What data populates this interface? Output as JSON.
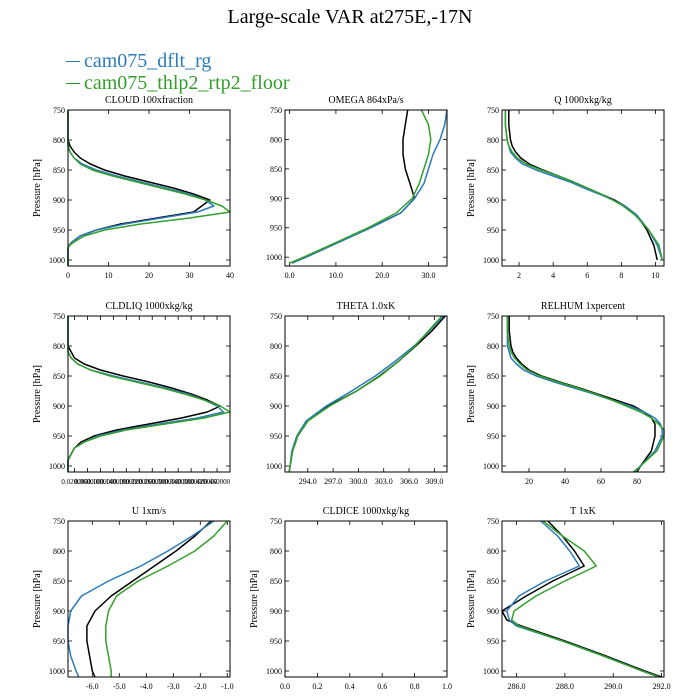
{
  "title": "Large-scale VAR at275E,-17N",
  "legend": [
    {
      "name": "cam075_dflt_rg",
      "color": "#2b7bbb"
    },
    {
      "name": "cam075_thlp2_rtp2_floor",
      "color": "#33a02c"
    }
  ],
  "colors": {
    "reference": "#000000"
  },
  "chart_data": [
    {
      "type": "line",
      "title": "CLOUD  100xfraction",
      "ylabel": "Pressure [hPa]",
      "ylim": [
        1010,
        750
      ],
      "yticks": [
        750,
        800,
        850,
        900,
        950,
        1000
      ],
      "xlim": [
        0,
        40
      ],
      "xticks": [
        0,
        10,
        20,
        30,
        40
      ],
      "xticklabels": [
        "0",
        "10",
        "20",
        "30",
        "40"
      ],
      "y": [
        750,
        775,
        800,
        810,
        820,
        830,
        840,
        850,
        860,
        870,
        880,
        890,
        900,
        910,
        920,
        930,
        940,
        950,
        960,
        970,
        975,
        980,
        990,
        1000,
        1010
      ],
      "series": [
        {
          "name": "",
          "color": "#000000",
          "x": [
            0,
            0,
            0,
            0.5,
            1.5,
            3,
            5.5,
            9,
            14,
            20,
            26,
            31,
            35,
            33,
            31,
            22,
            13,
            7,
            3,
            1,
            0.3,
            0,
            0,
            0,
            0
          ]
        },
        {
          "name": "cam075_dflt_rg",
          "color": "#2b7bbb",
          "x": [
            0,
            0,
            0,
            0,
            0.5,
            1.5,
            3.5,
            7,
            12,
            18,
            24,
            30,
            34,
            36,
            32,
            23,
            14,
            7,
            3,
            1,
            0.3,
            0,
            0,
            0,
            0
          ]
        },
        {
          "name": "cam075_thlp2_rtp2_floor",
          "color": "#33a02c",
          "x": [
            0,
            0,
            0,
            0,
            0.5,
            1.5,
            3,
            6,
            11,
            17,
            23,
            29,
            34,
            38,
            40,
            30,
            18,
            9,
            4,
            1.5,
            0.5,
            0,
            0,
            0,
            0
          ]
        }
      ]
    },
    {
      "type": "line",
      "title": "OMEGA  864xPa/s",
      "ylabel": "",
      "ylim": [
        1015,
        750
      ],
      "yticks": [
        750,
        800,
        850,
        900,
        950,
        1000
      ],
      "xlim": [
        -1,
        34
      ],
      "xticks": [
        0,
        10,
        20,
        30
      ],
      "xticklabels": [
        "0.0",
        "10.0",
        "20.0",
        "30.0"
      ],
      "y": [
        750,
        775,
        800,
        825,
        850,
        875,
        900,
        925,
        950,
        975,
        1000,
        1010
      ],
      "series": [
        {
          "name": "",
          "color": "#000000",
          "x": [
            25.5,
            25,
            24.5,
            24.5,
            25,
            26,
            27,
            24,
            17.5,
            10.5,
            3.5,
            0.5
          ]
        },
        {
          "name": "cam075_dflt_rg",
          "color": "#2b7bbb",
          "x": [
            34,
            33.5,
            32.5,
            31,
            30,
            29,
            27,
            24,
            17.5,
            10.5,
            3.5,
            0.5
          ]
        },
        {
          "name": "cam075_thlp2_rtp2_floor",
          "color": "#33a02c",
          "x": [
            28.5,
            30,
            30.5,
            30,
            29,
            28,
            26.5,
            23,
            17,
            10,
            3,
            0
          ]
        }
      ]
    },
    {
      "type": "line",
      "title": "Q  1000xkg/kg",
      "ylabel": "Pressure [hPa]",
      "ylim": [
        1010,
        750
      ],
      "yticks": [
        750,
        800,
        850,
        900,
        950,
        1000
      ],
      "xlim": [
        1,
        10.5
      ],
      "xticks": [
        2,
        4,
        6,
        8,
        10
      ],
      "xticklabels": [
        "2",
        "4",
        "6",
        "8",
        "10"
      ],
      "y": [
        750,
        775,
        800,
        810,
        820,
        830,
        840,
        850,
        860,
        870,
        880,
        890,
        900,
        910,
        925,
        950,
        975,
        1000
      ],
      "series": [
        {
          "name": "",
          "color": "#000000",
          "x": [
            1.4,
            1.4,
            1.5,
            1.6,
            1.8,
            2.1,
            2.6,
            3.4,
            4.3,
            5.2,
            6.0,
            6.8,
            7.6,
            8.2,
            8.9,
            9.5,
            9.9,
            10.1
          ]
        },
        {
          "name": "cam075_dflt_rg",
          "color": "#2b7bbb",
          "x": [
            1.2,
            1.2,
            1.3,
            1.4,
            1.5,
            1.8,
            2.2,
            3.0,
            4.0,
            5.0,
            5.8,
            6.7,
            7.5,
            8.2,
            8.9,
            9.6,
            10.1,
            10.4
          ]
        },
        {
          "name": "cam075_thlp2_rtp2_floor",
          "color": "#33a02c",
          "x": [
            1.2,
            1.2,
            1.3,
            1.4,
            1.6,
            1.9,
            2.4,
            3.3,
            4.3,
            5.2,
            6.0,
            6.8,
            7.5,
            8.1,
            8.8,
            9.6,
            10.2,
            10.4
          ]
        }
      ]
    },
    {
      "type": "line",
      "title": "CLDLIQ  1000xkg/kg",
      "ylabel": "Pressure [hPa]",
      "ylim": [
        1010,
        750
      ],
      "yticks": [
        750,
        800,
        850,
        900,
        950,
        1000
      ],
      "xlim": [
        0,
        0.5
      ],
      "xticks": [
        0.02,
        0.06,
        0.1,
        0.14,
        0.18,
        0.22,
        0.26,
        0.3,
        0.34,
        0.38,
        0.42,
        0.46
      ],
      "xticklabels": [
        "0.020000",
        "0.060000",
        "0.100000",
        "0.140000",
        "0.180000",
        "0.220000",
        "0.260000",
        "0.300000",
        "0.340000",
        "0.380000",
        "0.420000",
        "0.460000"
      ],
      "y": [
        750,
        775,
        800,
        810,
        820,
        830,
        840,
        850,
        860,
        870,
        880,
        890,
        900,
        910,
        920,
        930,
        940,
        950,
        960,
        970,
        980,
        990,
        1000,
        1010
      ],
      "series": [
        {
          "name": "",
          "color": "#000000",
          "x": [
            0,
            0,
            0,
            0.01,
            0.02,
            0.05,
            0.1,
            0.17,
            0.25,
            0.32,
            0.38,
            0.43,
            0.47,
            0.43,
            0.35,
            0.25,
            0.15,
            0.08,
            0.04,
            0.02,
            0.01,
            0,
            0,
            0
          ]
        },
        {
          "name": "cam075_dflt_rg",
          "color": "#2b7bbb",
          "x": [
            0,
            0,
            0,
            0,
            0.01,
            0.03,
            0.07,
            0.14,
            0.22,
            0.3,
            0.37,
            0.42,
            0.46,
            0.48,
            0.4,
            0.28,
            0.17,
            0.09,
            0.05,
            0.02,
            0.01,
            0,
            0,
            0
          ]
        },
        {
          "name": "cam075_thlp2_rtp2_floor",
          "color": "#33a02c",
          "x": [
            0,
            0,
            0,
            0,
            0.01,
            0.03,
            0.07,
            0.13,
            0.21,
            0.29,
            0.36,
            0.42,
            0.47,
            0.5,
            0.42,
            0.3,
            0.18,
            0.1,
            0.05,
            0.02,
            0.01,
            0,
            0,
            0
          ]
        }
      ]
    },
    {
      "type": "line",
      "title": "THETA  1.0xK",
      "ylabel": "",
      "ylim": [
        1010,
        750
      ],
      "yticks": [
        750,
        800,
        850,
        900,
        950,
        1000
      ],
      "xlim": [
        291.3,
        310.5
      ],
      "xticks": [
        294,
        297,
        300,
        303,
        306,
        309
      ],
      "xticklabels": [
        "294.0",
        "297.0",
        "300.0",
        "303.0",
        "306.0",
        "309.0"
      ],
      "y": [
        750,
        775,
        800,
        825,
        850,
        875,
        900,
        925,
        950,
        975,
        1000,
        1010
      ],
      "series": [
        {
          "name": "",
          "color": "#000000",
          "x": [
            310.3,
            308.7,
            306.8,
            304.8,
            302.5,
            299.8,
            296.4,
            294.0,
            292.8,
            292.2,
            291.9,
            291.8
          ]
        },
        {
          "name": "cam075_dflt_rg",
          "color": "#2b7bbb",
          "x": [
            310.1,
            308.4,
            306.6,
            304.4,
            302.0,
            299.2,
            296.2,
            293.8,
            292.7,
            292.1,
            291.9,
            291.8
          ]
        },
        {
          "name": "cam075_thlp2_rtp2_floor",
          "color": "#33a02c",
          "x": [
            309.9,
            308.3,
            306.7,
            304.8,
            302.6,
            299.8,
            296.6,
            294.0,
            292.8,
            292.2,
            291.9,
            291.8
          ]
        }
      ]
    },
    {
      "type": "line",
      "title": "RELHUM  1xpercent",
      "ylabel": "Pressure [hPa]",
      "ylim": [
        1010,
        750
      ],
      "yticks": [
        750,
        800,
        850,
        900,
        950,
        1000
      ],
      "xlim": [
        5,
        95
      ],
      "xticks": [
        20,
        40,
        60,
        80
      ],
      "xticklabels": [
        "20",
        "40",
        "60",
        "80"
      ],
      "y": [
        750,
        775,
        800,
        810,
        820,
        830,
        840,
        850,
        860,
        870,
        880,
        890,
        900,
        910,
        920,
        930,
        940,
        950,
        975,
        1000,
        1010
      ],
      "series": [
        {
          "name": "",
          "color": "#000000",
          "x": [
            9,
            9,
            10,
            11,
            13,
            16,
            20,
            27,
            37,
            48,
            58,
            68,
            78,
            84,
            88,
            90,
            90,
            90,
            88,
            82,
            80
          ]
        },
        {
          "name": "cam075_dflt_rg",
          "color": "#2b7bbb",
          "x": [
            8,
            8,
            8,
            9,
            10,
            13,
            17,
            24,
            34,
            45,
            56,
            66,
            76,
            84,
            90,
            93,
            94,
            94,
            90,
            82,
            79
          ]
        },
        {
          "name": "cam075_thlp2_rtp2_floor",
          "color": "#33a02c",
          "x": [
            8,
            8,
            9,
            10,
            12,
            15,
            19,
            26,
            36,
            47,
            57,
            66,
            74,
            82,
            88,
            92,
            95,
            95,
            91,
            82,
            78
          ]
        }
      ]
    },
    {
      "type": "line",
      "title": "U  1xm/s",
      "ylabel": "Pressure [hPa]",
      "ylim": [
        1010,
        750
      ],
      "yticks": [
        750,
        800,
        850,
        900,
        950,
        1000
      ],
      "xlim": [
        -6.9,
        -0.9
      ],
      "xticks": [
        -6,
        -5,
        -4,
        -3,
        -2,
        -1
      ],
      "xticklabels": [
        "-6.0",
        "-5.0",
        "-4.0",
        "-3.0",
        "-2.0",
        "-1.0"
      ],
      "y": [
        750,
        775,
        800,
        825,
        850,
        875,
        900,
        925,
        950,
        975,
        1000,
        1010
      ],
      "series": [
        {
          "name": "",
          "color": "#000000",
          "x": [
            -1.6,
            -2.2,
            -2.9,
            -3.7,
            -4.5,
            -5.3,
            -5.9,
            -6.2,
            -6.2,
            -6.1,
            -6.0,
            -5.9
          ]
        },
        {
          "name": "cam075_dflt_rg",
          "color": "#2b7bbb",
          "x": [
            -1.5,
            -2.3,
            -3.2,
            -4.2,
            -5.4,
            -6.4,
            -6.8,
            -6.9,
            -6.9,
            -6.8,
            -6.6,
            -6.5
          ]
        },
        {
          "name": "cam075_thlp2_rtp2_floor",
          "color": "#33a02c",
          "x": [
            -1.0,
            -1.5,
            -2.2,
            -3.2,
            -4.3,
            -5.1,
            -5.4,
            -5.5,
            -5.5,
            -5.4,
            -5.3,
            -5.3
          ]
        }
      ]
    },
    {
      "type": "line",
      "title": "CLDICE  1000xkg/kg",
      "ylabel": "Pressure [hPa]",
      "ylim": [
        1010,
        750
      ],
      "yticks": [
        750,
        800,
        850,
        900,
        950,
        1000
      ],
      "xlim": [
        0,
        1
      ],
      "xticks": [
        0,
        0.2,
        0.4,
        0.6,
        0.8,
        1.0
      ],
      "xticklabels": [
        "0.0",
        "0.2",
        "0.4",
        "0.6",
        "0.8",
        "1.0"
      ],
      "y": [],
      "series": []
    },
    {
      "type": "line",
      "title": "T  1xK",
      "ylabel": "Pressure [hPa]",
      "ylim": [
        1010,
        750
      ],
      "yticks": [
        750,
        800,
        850,
        900,
        950,
        1000
      ],
      "xlim": [
        285.4,
        292.1
      ],
      "xticks": [
        286,
        288,
        290,
        292
      ],
      "xticklabels": [
        "286.0",
        "288.0",
        "290.0",
        "292.0"
      ],
      "y": [
        750,
        775,
        800,
        825,
        850,
        875,
        900,
        915,
        925,
        950,
        975,
        1000,
        1010
      ],
      "series": [
        {
          "name": "",
          "color": "#000000",
          "x": [
            287.3,
            287.9,
            288.4,
            288.8,
            287.5,
            286.4,
            285.4,
            285.6,
            286.2,
            288.0,
            289.7,
            291.3,
            292.0
          ]
        },
        {
          "name": "cam075_dflt_rg",
          "color": "#2b7bbb",
          "x": [
            287.0,
            287.7,
            288.2,
            288.6,
            287.2,
            286.1,
            285.6,
            285.7,
            286.0,
            287.9,
            289.6,
            291.2,
            291.9
          ]
        },
        {
          "name": "cam075_thlp2_rtp2_floor",
          "color": "#33a02c",
          "x": [
            287.1,
            287.9,
            288.8,
            289.3,
            288.0,
            286.8,
            285.9,
            285.8,
            286.1,
            287.9,
            289.6,
            291.2,
            291.9
          ]
        }
      ]
    }
  ]
}
